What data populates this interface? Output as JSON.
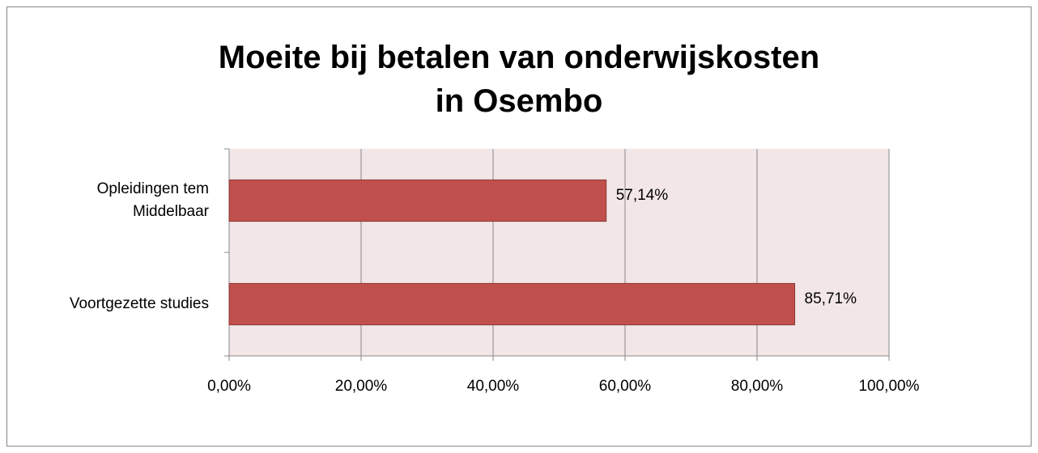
{
  "chart_data": {
    "type": "bar",
    "orientation": "horizontal",
    "title": "Moeite bij betalen van onderwijskosten\nin Osembo",
    "categories": [
      "Opleidingen tem\nMiddelbaar",
      "Voortgezette studies"
    ],
    "values": [
      57.14,
      85.71
    ],
    "value_labels": [
      "57,14%",
      "85,71%"
    ],
    "color": "#c0504d",
    "xlim": [
      0,
      100
    ],
    "xticks": [
      {
        "value": 0,
        "label": "0,00%"
      },
      {
        "value": 20,
        "label": "20,00%"
      },
      {
        "value": 40,
        "label": "40,00%"
      },
      {
        "value": 60,
        "label": "60,00%"
      },
      {
        "value": 80,
        "label": "80,00%"
      },
      {
        "value": 100,
        "label": "100,00%"
      }
    ],
    "grid": true
  }
}
